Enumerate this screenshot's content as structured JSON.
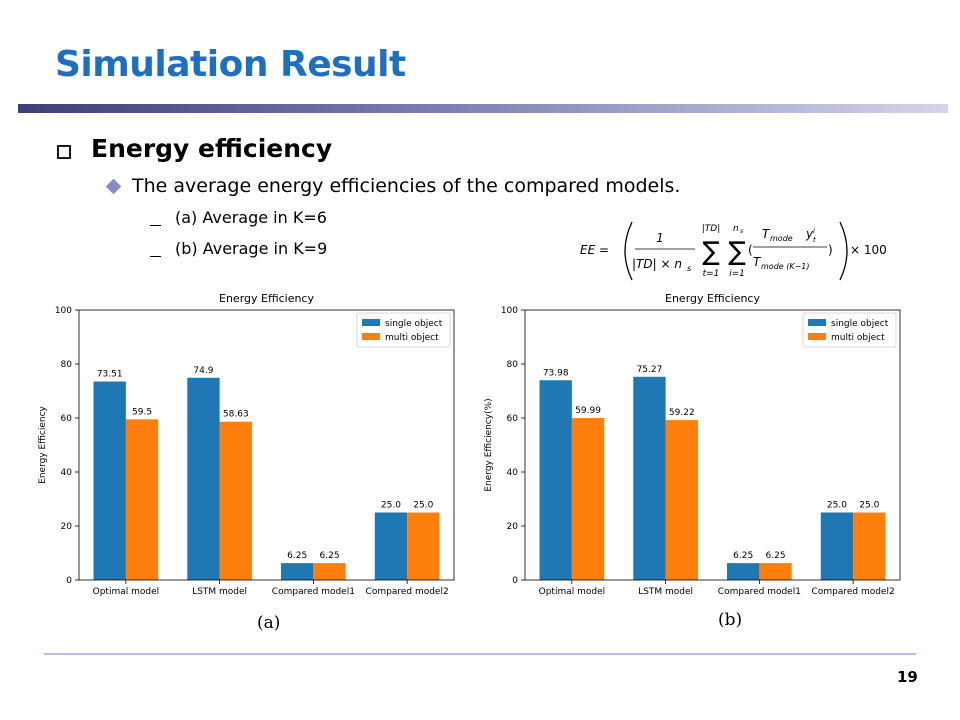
{
  "slide": {
    "title": "Simulation Result",
    "heading": "Energy efficiency",
    "subheading": "The average energy efficiencies of the compared models.",
    "items": [
      "(a) Average  in K=6",
      "(b) Average  in K=9"
    ],
    "page_number": "19"
  },
  "formula": {
    "lhs": "EE =",
    "frac_num": "1",
    "frac_den_a": "|TD| × n",
    "frac_den_sub": "s",
    "sum1_top": "|TD|",
    "sum1_bottom": "t=1",
    "sum2_top": "n",
    "sum2_top_sub": "s",
    "sum2_bottom": "i=1",
    "inner_num": "T",
    "inner_num_sub": "mode",
    "inner_num_y": "y",
    "inner_num_y_sup": "i",
    "inner_num_y_sub": "t",
    "inner_den": "T",
    "inner_den_sub": "mode (K−1)",
    "tail": "× 100"
  },
  "colors": {
    "single": "#1f77b4",
    "multi": "#ff7f0e",
    "title": "#1f6fc1"
  },
  "chart_data": [
    {
      "type": "bar",
      "title": "Energy Efficiency",
      "caption": "(a)",
      "xlabel": "",
      "ylabel": "Energy Efficiency",
      "ylim": [
        0,
        100
      ],
      "yticks": [
        0,
        20,
        40,
        60,
        80,
        100
      ],
      "categories": [
        "Optimal model",
        "LSTM model",
        "Compared model1",
        "Compared model2"
      ],
      "legend_position": "top-right",
      "grid": false,
      "series": [
        {
          "name": "single object",
          "values": [
            73.51,
            74.9,
            6.25,
            25.0
          ],
          "labels": [
            "73.51",
            "74.9",
            "6.25",
            "25.0"
          ]
        },
        {
          "name": "multi object",
          "values": [
            59.5,
            58.63,
            6.25,
            25.0
          ],
          "labels": [
            "59.5",
            "58.63",
            "6.25",
            "25.0"
          ]
        }
      ]
    },
    {
      "type": "bar",
      "title": "Energy Efficiency",
      "caption": "(b)",
      "xlabel": "",
      "ylabel": "Energy Efficiency(%)",
      "ylim": [
        0,
        100
      ],
      "yticks": [
        0,
        20,
        40,
        60,
        80,
        100
      ],
      "categories": [
        "Optimal model",
        "LSTM model",
        "Compared model1",
        "Compared model2"
      ],
      "legend_position": "top-right",
      "grid": false,
      "series": [
        {
          "name": "single object",
          "values": [
            73.98,
            75.27,
            6.25,
            25.0
          ],
          "labels": [
            "73.98",
            "75.27",
            "6.25",
            "25.0"
          ]
        },
        {
          "name": "multi object",
          "values": [
            59.99,
            59.22,
            6.25,
            25.0
          ],
          "labels": [
            "59.99",
            "59.22",
            "6.25",
            "25.0"
          ]
        }
      ]
    }
  ]
}
